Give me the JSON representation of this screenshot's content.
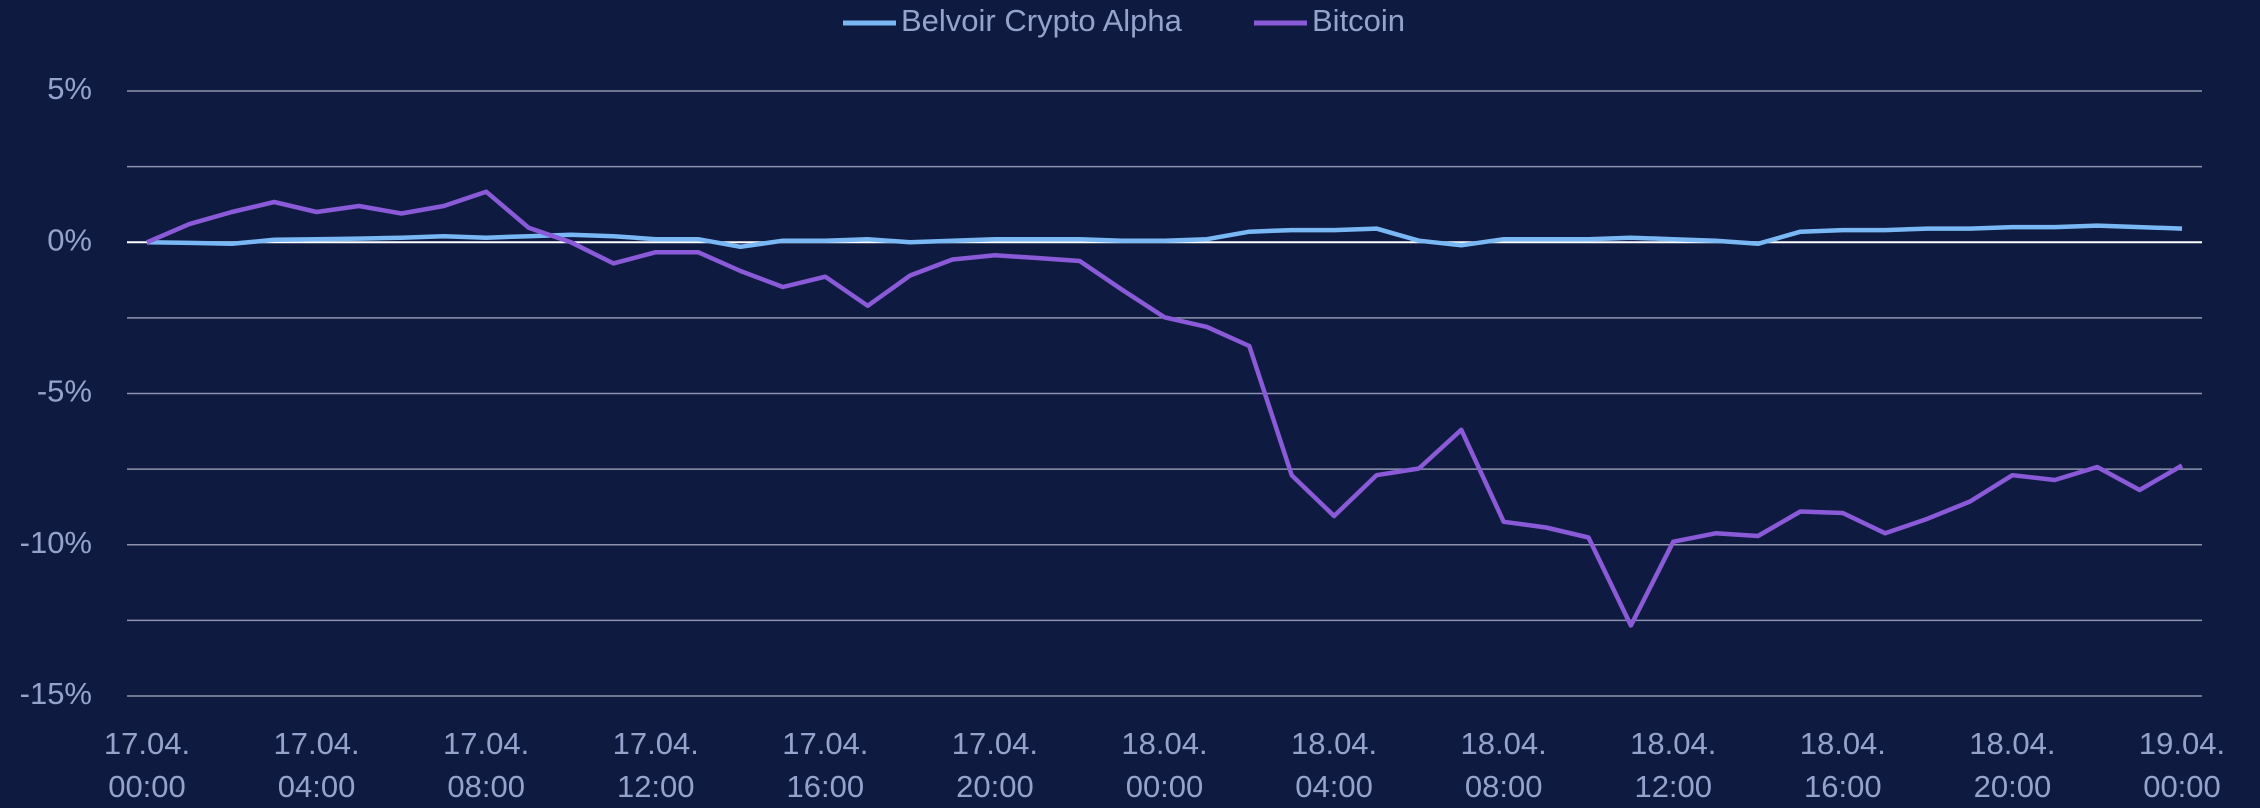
{
  "chart_data": {
    "type": "line",
    "categories": [
      "17.04.\n00:00",
      null,
      null,
      null,
      "17.04.\n04:00",
      null,
      null,
      null,
      "17.04.\n08:00",
      null,
      null,
      null,
      "17.04.\n12:00",
      null,
      null,
      null,
      "17.04.\n16:00",
      null,
      null,
      null,
      "17.04.\n20:00",
      null,
      null,
      null,
      "18.04.\n00:00",
      null,
      null,
      null,
      "18.04.\n04:00",
      null,
      null,
      null,
      "18.04.\n08:00",
      null,
      null,
      null,
      "18.04.\n12:00",
      null,
      null,
      null,
      "18.04.\n16:00",
      null,
      null,
      null,
      "18.04.\n20:00",
      null,
      null,
      null,
      "19.04.\n00:00"
    ],
    "series": [
      {
        "name": "Belvoir Crypto Alpha",
        "color": "#7ab8f5",
        "values": [
          0,
          -0.02,
          -0.05,
          0.08,
          0.1,
          0.12,
          0.15,
          0.2,
          0.15,
          0.2,
          0.25,
          0.2,
          0.1,
          0.1,
          -0.15,
          0.05,
          0.05,
          0.1,
          0,
          0.05,
          0.1,
          0.1,
          0.1,
          0.05,
          0.05,
          0.1,
          0.35,
          0.4,
          0.4,
          0.45,
          0.05,
          -0.1,
          0.1,
          0.1,
          0.1,
          0.15,
          0.1,
          0.05,
          -0.05,
          0.35,
          0.4,
          0.4,
          0.45,
          0.45,
          0.5,
          0.5,
          0.55,
          0.5,
          0.45
        ]
      },
      {
        "name": "Bitcoin",
        "color": "#8a5ad8",
        "values": [
          0,
          0.6,
          1.0,
          1.33,
          1.0,
          1.2,
          0.95,
          1.2,
          1.67,
          0.48,
          0,
          -0.7,
          -0.33,
          -0.33,
          -0.95,
          -1.48,
          -1.14,
          -2.1,
          -1.1,
          -0.57,
          -0.43,
          -0.52,
          -0.62,
          -1.57,
          -2.48,
          -2.8,
          -3.43,
          -7.7,
          -9.05,
          -7.7,
          -7.48,
          -6.2,
          -9.24,
          -9.43,
          -9.76,
          -12.67,
          -9.9,
          -9.62,
          -9.71,
          -8.9,
          -8.95,
          -9.62,
          -9.14,
          -8.57,
          -7.7,
          -7.86,
          -7.43,
          -8.19,
          -7.38
        ]
      }
    ],
    "ylim": [
      -15,
      5
    ],
    "yticks": [
      {
        "value": -15,
        "label": "-15%"
      },
      {
        "value": -10,
        "label": "-10%"
      },
      {
        "value": -5,
        "label": "-5%"
      },
      {
        "value": 0,
        "label": "0%"
      },
      {
        "value": 5,
        "label": "5%"
      }
    ],
    "minor_yticks": [
      -12.5,
      -7.5,
      -2.5,
      2.5
    ],
    "grid": true,
    "legend": "top"
  }
}
